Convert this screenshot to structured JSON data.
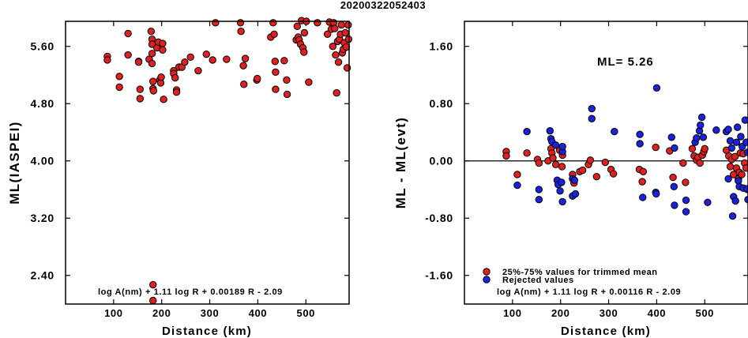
{
  "figure_title": "20200322052403",
  "chart_data": [
    {
      "type": "scatter",
      "id": "left",
      "xlabel": "Distance (km)",
      "ylabel": "ML(IASPEI)",
      "xlim": [
        0,
        590
      ],
      "ylim": [
        2.0,
        5.95
      ],
      "xticks": [
        100,
        200,
        300,
        400,
        500
      ],
      "xtick_labels": [
        "100",
        "200",
        "300",
        "400",
        "500"
      ],
      "yticks": [
        2.4,
        3.2,
        4.0,
        4.8,
        5.6
      ],
      "ytick_labels": [
        "2.40",
        "3.20",
        "4.00",
        "4.80",
        "5.60"
      ],
      "grid": false,
      "annotation": "log A(nm) + 1.11 log R + 0.00189 R - 2.09",
      "series": [
        {
          "color": "#e02020",
          "points": [
            [
              87,
              5.46
            ],
            [
              87,
              5.41
            ],
            [
              112,
              5.18
            ],
            [
              112,
              5.03
            ],
            [
              130,
              5.78
            ],
            [
              130,
              5.48
            ],
            [
              152,
              5.39
            ],
            [
              152,
              5.38
            ],
            [
              155,
              5.0
            ],
            [
              155,
              4.87
            ],
            [
              174,
              5.42
            ],
            [
              178,
              5.81
            ],
            [
              180,
              5.7
            ],
            [
              180,
              5.63
            ],
            [
              180,
              5.5
            ],
            [
              180,
              5.36
            ],
            [
              182,
              5.11
            ],
            [
              182,
              5.01
            ],
            [
              183,
              4.98
            ],
            [
              182,
              2.27
            ],
            [
              182,
              2.05
            ],
            [
              190,
              5.58
            ],
            [
              193,
              5.66
            ],
            [
              196,
              5.13
            ],
            [
              198,
              5.09
            ],
            [
              199,
              5.17
            ],
            [
              202,
              5.55
            ],
            [
              202,
              5.64
            ],
            [
              204,
              4.86
            ],
            [
              225,
              5.26
            ],
            [
              225,
              5.22
            ],
            [
              228,
              5.16
            ],
            [
              231,
              4.99
            ],
            [
              231,
              4.96
            ],
            [
              236,
              5.31
            ],
            [
              242,
              5.31
            ],
            [
              248,
              5.38
            ],
            [
              260,
              5.45
            ],
            [
              276,
              5.26
            ],
            [
              293,
              5.49
            ],
            [
              306,
              5.41
            ],
            [
              312,
              5.93
            ],
            [
              335,
              5.42
            ],
            [
              364,
              5.93
            ],
            [
              365,
              5.81
            ],
            [
              370,
              5.33
            ],
            [
              371,
              5.07
            ],
            [
              374,
              5.43
            ],
            [
              398,
              5.13
            ],
            [
              399,
              5.15
            ],
            [
              427,
              5.73
            ],
            [
              432,
              5.93
            ],
            [
              434,
              5.77
            ],
            [
              436,
              5.39
            ],
            [
              437,
              5.24
            ],
            [
              437,
              5.0
            ],
            [
              455,
              5.4
            ],
            [
              460,
              5.13
            ],
            [
              461,
              4.93
            ],
            [
              480,
              5.69
            ],
            [
              482,
              5.88
            ],
            [
              484,
              5.73
            ],
            [
              486,
              5.69
            ],
            [
              489,
              5.63
            ],
            [
              491,
              5.96
            ],
            [
              494,
              5.58
            ],
            [
              496,
              5.52
            ],
            [
              497,
              5.79
            ],
            [
              501,
              5.95
            ],
            [
              506,
              5.1
            ],
            [
              524,
              5.93
            ],
            [
              545,
              5.77
            ],
            [
              549,
              5.94
            ],
            [
              553,
              5.84
            ],
            [
              556,
              5.6
            ],
            [
              558,
              5.93
            ],
            [
              560,
              5.85
            ],
            [
              562,
              5.48
            ],
            [
              564,
              4.95
            ],
            [
              566,
              5.67
            ],
            [
              568,
              5.38
            ],
            [
              570,
              5.7
            ],
            [
              572,
              5.77
            ],
            [
              574,
              5.9
            ],
            [
              576,
              5.51
            ],
            [
              578,
              5.56
            ],
            [
              580,
              5.65
            ],
            [
              582,
              5.79
            ],
            [
              584,
              5.59
            ],
            [
              586,
              5.3
            ],
            [
              588,
              5.9
            ],
            [
              589,
              5.7
            ]
          ]
        }
      ]
    },
    {
      "type": "scatter",
      "id": "right",
      "xlabel": "Distance (km)",
      "ylabel": "ML - ML(evt)",
      "xlim": [
        0,
        590
      ],
      "ylim": [
        -2.0,
        1.95
      ],
      "xticks": [
        100,
        200,
        300,
        400,
        500
      ],
      "xtick_labels": [
        "100",
        "200",
        "300",
        "400",
        "500"
      ],
      "yticks": [
        -1.6,
        -0.8,
        0.0,
        0.8,
        1.6
      ],
      "ytick_labels": [
        "-1.60",
        "-0.80",
        "0.00",
        "0.80",
        "1.60"
      ],
      "grid": false,
      "reference_line_y": 0.0,
      "ml_label": "ML= 5.26",
      "annotation": "log A(nm) + 1.11 log R + 0.00116 R - 2.09",
      "legend": [
        {
          "label": "25%-75% values for trimmed mean",
          "color": "#e02020"
        },
        {
          "label": "Rejected values",
          "color": "#1a22dd"
        }
      ],
      "series": [
        {
          "color": "#e02020",
          "points": [
            [
              87,
              0.13
            ],
            [
              87,
              0.07
            ],
            [
              110,
              -0.19
            ],
            [
              130,
              0.11
            ],
            [
              152,
              0.02
            ],
            [
              155,
              -0.03
            ],
            [
              174,
              0.0
            ],
            [
              180,
              0.17
            ],
            [
              182,
              0.11
            ],
            [
              184,
              0.04
            ],
            [
              190,
              -0.05
            ],
            [
              198,
              0.15
            ],
            [
              203,
              -0.08
            ],
            [
              204,
              0.08
            ],
            [
              225,
              -0.19
            ],
            [
              228,
              -0.31
            ],
            [
              240,
              -0.15
            ],
            [
              246,
              -0.13
            ],
            [
              258,
              -0.05
            ],
            [
              262,
              0.01
            ],
            [
              275,
              -0.22
            ],
            [
              293,
              -0.02
            ],
            [
              305,
              -0.12
            ],
            [
              310,
              -0.18
            ],
            [
              364,
              -0.12
            ],
            [
              370,
              -0.29
            ],
            [
              372,
              -0.15
            ],
            [
              398,
              0.19
            ],
            [
              427,
              0.14
            ],
            [
              434,
              -0.23
            ],
            [
              455,
              -0.03
            ],
            [
              460,
              -0.3
            ],
            [
              474,
              0.17
            ],
            [
              478,
              0.07
            ],
            [
              483,
              0.01
            ],
            [
              486,
              0.05
            ],
            [
              490,
              -0.03
            ],
            [
              495,
              0.08
            ],
            [
              498,
              0.13
            ],
            [
              500,
              0.17
            ],
            [
              545,
              0.15
            ],
            [
              550,
              0.07
            ],
            [
              553,
              -0.08
            ],
            [
              556,
              0.02
            ],
            [
              560,
              -0.19
            ],
            [
              563,
              0.06
            ],
            [
              566,
              -0.1
            ],
            [
              570,
              -0.25
            ],
            [
              572,
              -0.16
            ],
            [
              574,
              0.11
            ],
            [
              577,
              -0.19
            ],
            [
              580,
              0.1
            ],
            [
              583,
              -0.03
            ],
            [
              586,
              -0.1
            ],
            [
              589,
              -0.4
            ]
          ]
        },
        {
          "color": "#1a22dd",
          "points": [
            [
              110,
              -0.34
            ],
            [
              130,
              0.41
            ],
            [
              155,
              -0.4
            ],
            [
              155,
              -0.54
            ],
            [
              178,
              0.42
            ],
            [
              180,
              0.31
            ],
            [
              182,
              0.27
            ],
            [
              190,
              0.22
            ],
            [
              193,
              -0.27
            ],
            [
              195,
              -0.33
            ],
            [
              199,
              -0.42
            ],
            [
              202,
              -0.3
            ],
            [
              204,
              0.13
            ],
            [
              204,
              0.2
            ],
            [
              204,
              -0.57
            ],
            [
              225,
              -0.25
            ],
            [
              225,
              -0.49
            ],
            [
              229,
              -0.27
            ],
            [
              231,
              -0.46
            ],
            [
              265,
              0.73
            ],
            [
              265,
              0.59
            ],
            [
              312,
              0.41
            ],
            [
              365,
              0.37
            ],
            [
              365,
              0.24
            ],
            [
              371,
              -0.51
            ],
            [
              398,
              -0.44
            ],
            [
              399,
              -0.46
            ],
            [
              400,
              1.02
            ],
            [
              431,
              0.33
            ],
            [
              436,
              -0.36
            ],
            [
              437,
              -0.62
            ],
            [
              437,
              0.18
            ],
            [
              461,
              -0.55
            ],
            [
              461,
              -0.71
            ],
            [
              480,
              0.26
            ],
            [
              483,
              0.32
            ],
            [
              489,
              0.42
            ],
            [
              491,
              0.5
            ],
            [
              494,
              0.61
            ],
            [
              497,
              0.33
            ],
            [
              506,
              -0.58
            ],
            [
              524,
              0.43
            ],
            [
              545,
              0.41
            ],
            [
              549,
              0.44
            ],
            [
              549,
              -0.25
            ],
            [
              553,
              0.28
            ],
            [
              556,
              0.18
            ],
            [
              558,
              -0.77
            ],
            [
              560,
              -0.5
            ],
            [
              564,
              -0.56
            ],
            [
              566,
              0.26
            ],
            [
              568,
              0.47
            ],
            [
              570,
              -0.28
            ],
            [
              572,
              -0.36
            ],
            [
              575,
              0.34
            ],
            [
              578,
              0.2
            ],
            [
              580,
              -0.38
            ],
            [
              584,
              0.57
            ],
            [
              586,
              0.26
            ],
            [
              588,
              -0.39
            ],
            [
              589,
              0.12
            ],
            [
              590,
              -0.54
            ]
          ]
        }
      ]
    }
  ]
}
